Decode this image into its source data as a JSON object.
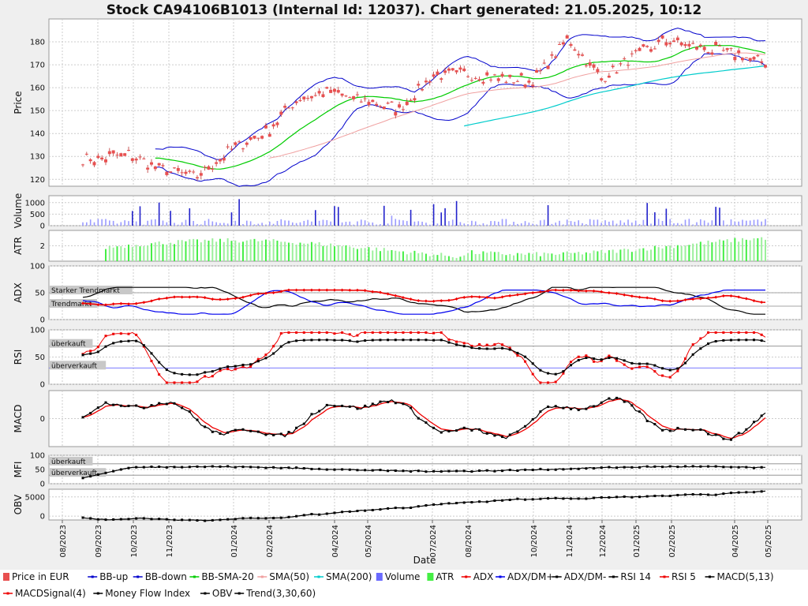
{
  "chart_data": {
    "type": "line",
    "title": "Stock CA94106B1013 (Internal Id: 12037). Chart generated: 21.05.2025, 10:12",
    "xlabel": "Date",
    "x_ticks": [
      "08/2023",
      "09/2023",
      "10/2023",
      "11/2023",
      "01/2024",
      "02/2024",
      "04/2024",
      "05/2024",
      "07/2024",
      "08/2024",
      "10/2024",
      "11/2024",
      "12/2024",
      "01/2025",
      "02/2025",
      "04/2025",
      "05/2025"
    ],
    "panels": [
      {
        "name": "price",
        "ylabel": "Price",
        "ylim": [
          117,
          190
        ],
        "yticks": [
          120,
          130,
          140,
          150,
          160,
          170,
          180
        ]
      },
      {
        "name": "volume",
        "ylabel": "Volume",
        "ylim": [
          0,
          1300
        ],
        "yticks": [
          0,
          500,
          1000
        ]
      },
      {
        "name": "atr",
        "ylabel": "ATR",
        "ylim": [
          0,
          4
        ],
        "yticks": [
          2
        ]
      },
      {
        "name": "adx",
        "ylabel": "ADX",
        "ylim": [
          0,
          100
        ],
        "yticks": [
          0,
          50,
          100
        ],
        "zones": [
          "Starker Trendmarkt",
          "Trendmarkt"
        ]
      },
      {
        "name": "rsi",
        "ylabel": "RSI",
        "ylim": [
          0,
          100
        ],
        "yticks": [
          0,
          50,
          100
        ],
        "zones": [
          "überkauft",
          "überverkauft"
        ]
      },
      {
        "name": "macd",
        "ylabel": "MACD",
        "ylim": [
          -6,
          6
        ],
        "yticks": [
          0
        ]
      },
      {
        "name": "mfi",
        "ylabel": "MFI",
        "ylim": [
          0,
          100
        ],
        "yticks": [
          0,
          50,
          100
        ],
        "zones": [
          "überkauft",
          "überverkauft"
        ]
      },
      {
        "name": "obv",
        "ylabel": "OBV",
        "ylim": [
          -1000,
          7000
        ],
        "yticks": [
          0,
          5000
        ]
      }
    ],
    "series": [
      {
        "name": "Price in EUR",
        "color": "#e85050",
        "x": [
          "2023-09-01",
          "2023-10-01",
          "2023-11-01",
          "2023-12-01",
          "2024-01-01",
          "2024-02-01",
          "2024-03-01",
          "2024-04-01",
          "2024-05-01",
          "2024-06-01",
          "2024-07-01",
          "2024-08-01",
          "2024-09-01",
          "2024-10-01",
          "2024-11-01",
          "2024-12-01",
          "2025-01-01",
          "2025-02-01",
          "2025-03-01",
          "2025-04-01",
          "2025-05-01"
        ],
        "values": [
          129,
          131,
          124,
          121,
          133,
          140,
          155,
          158,
          154,
          151,
          165,
          166,
          164,
          163,
          181,
          164,
          174,
          181,
          177,
          175,
          170
        ]
      },
      {
        "name": "BB-up",
        "color": "#0000cc"
      },
      {
        "name": "BB-down",
        "color": "#0000cc"
      },
      {
        "name": "BB-SMA-20",
        "color": "#00cc00"
      },
      {
        "name": "SMA(50)",
        "color": "#f0a0a0"
      },
      {
        "name": "SMA(200)",
        "color": "#00cccc"
      },
      {
        "name": "Volume",
        "color": "#6a6aff"
      },
      {
        "name": "ATR",
        "color": "#44ee44"
      },
      {
        "name": "ADX",
        "color": "#ee0000"
      },
      {
        "name": "ADX/DM+",
        "color": "#0000ee"
      },
      {
        "name": "ADX/DM-",
        "color": "#000000"
      },
      {
        "name": "RSI 14",
        "color": "#000000"
      },
      {
        "name": "RSI 5",
        "color": "#ee0000"
      },
      {
        "name": "MACD(5,13)",
        "color": "#000000"
      },
      {
        "name": "MACDSignal(4)",
        "color": "#ee0000"
      },
      {
        "name": "Money Flow Index",
        "color": "#000000"
      },
      {
        "name": "OBV",
        "color": "#000000"
      },
      {
        "name": "Trend(3,30,60)",
        "color": "#000000"
      }
    ]
  }
}
